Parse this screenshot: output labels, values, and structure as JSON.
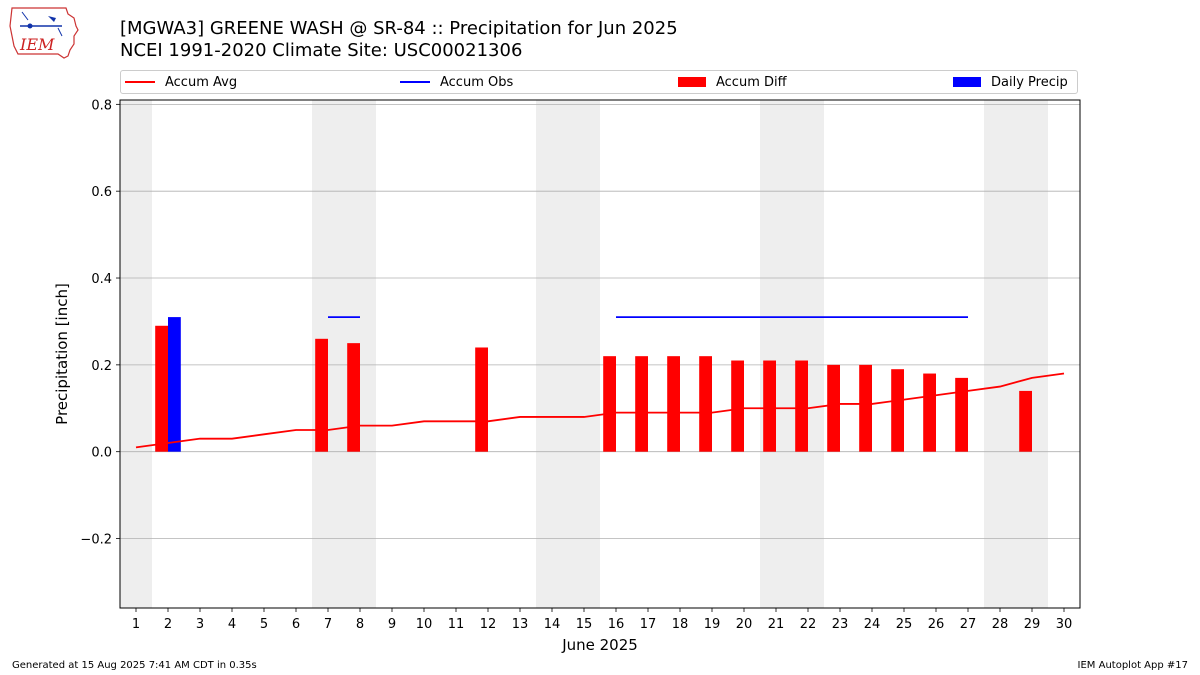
{
  "header": {
    "logo_text": "IEM",
    "title_line1": "[MGWA3] GREENE WASH @ SR-84 :: Precipitation for Jun 2025",
    "title_line2": "NCEI 1991-2020 Climate Site: USC00021306"
  },
  "footer": {
    "generated": "Generated at 15 Aug 2025 7:41 AM CDT in 0.35s",
    "app": "IEM Autoplot App #17"
  },
  "colors": {
    "avg": "#ff0000",
    "obs": "#0000ff",
    "diff": "#ff0000",
    "daily": "#0000ff",
    "weekend_band": "#eeeeee",
    "grid": "#b0b0b0"
  },
  "chart_data": {
    "type": "bar",
    "xlabel": "June 2025",
    "ylabel": "Precipitation [inch]",
    "xlim": [
      0.5,
      30.5
    ],
    "ylim": [
      -0.36,
      0.81
    ],
    "yticks": [
      -0.2,
      0.0,
      0.2,
      0.4,
      0.6,
      0.8
    ],
    "ytick_labels": [
      "−0.2",
      "0.0",
      "0.2",
      "0.4",
      "0.6",
      "0.8"
    ],
    "days": [
      1,
      2,
      3,
      4,
      5,
      6,
      7,
      8,
      9,
      10,
      11,
      12,
      13,
      14,
      15,
      16,
      17,
      18,
      19,
      20,
      21,
      22,
      23,
      24,
      25,
      26,
      27,
      28,
      29,
      30
    ],
    "grid": true,
    "legend_placement": "top, above plot",
    "weekend_bands": [
      [
        0.5,
        1.5
      ],
      [
        6.5,
        8.5
      ],
      [
        13.5,
        15.5
      ],
      [
        20.5,
        22.5
      ],
      [
        27.5,
        29.5
      ]
    ],
    "series": [
      {
        "name": "Accum Avg",
        "kind": "line",
        "days": [
          1,
          2,
          3,
          4,
          5,
          6,
          7,
          8,
          9,
          10,
          11,
          12,
          13,
          14,
          15,
          16,
          17,
          18,
          19,
          20,
          21,
          22,
          23,
          24,
          25,
          26,
          27,
          28,
          29,
          30
        ],
        "values": [
          0.01,
          0.02,
          0.03,
          0.03,
          0.04,
          0.05,
          0.05,
          0.06,
          0.06,
          0.07,
          0.07,
          0.07,
          0.08,
          0.08,
          0.08,
          0.09,
          0.09,
          0.09,
          0.09,
          0.1,
          0.1,
          0.1,
          0.11,
          0.11,
          0.12,
          0.13,
          0.14,
          0.15,
          0.17,
          0.18
        ]
      },
      {
        "name": "Accum Obs",
        "kind": "line",
        "segments": [
          {
            "days": [
              7,
              8
            ],
            "values": [
              0.31,
              0.31
            ]
          },
          {
            "days": [
              16,
              27
            ],
            "values": [
              0.31,
              0.31
            ]
          }
        ]
      },
      {
        "name": "Accum Diff",
        "kind": "bar",
        "days": [
          2,
          7,
          8,
          12,
          16,
          17,
          18,
          19,
          20,
          21,
          22,
          23,
          24,
          25,
          26,
          27,
          29
        ],
        "values": [
          0.29,
          0.26,
          0.25,
          0.24,
          0.22,
          0.22,
          0.22,
          0.22,
          0.21,
          0.21,
          0.21,
          0.2,
          0.2,
          0.19,
          0.18,
          0.17,
          0.14
        ]
      },
      {
        "name": "Daily Precip",
        "kind": "bar",
        "days": [
          2
        ],
        "values": [
          0.31
        ]
      }
    ]
  }
}
